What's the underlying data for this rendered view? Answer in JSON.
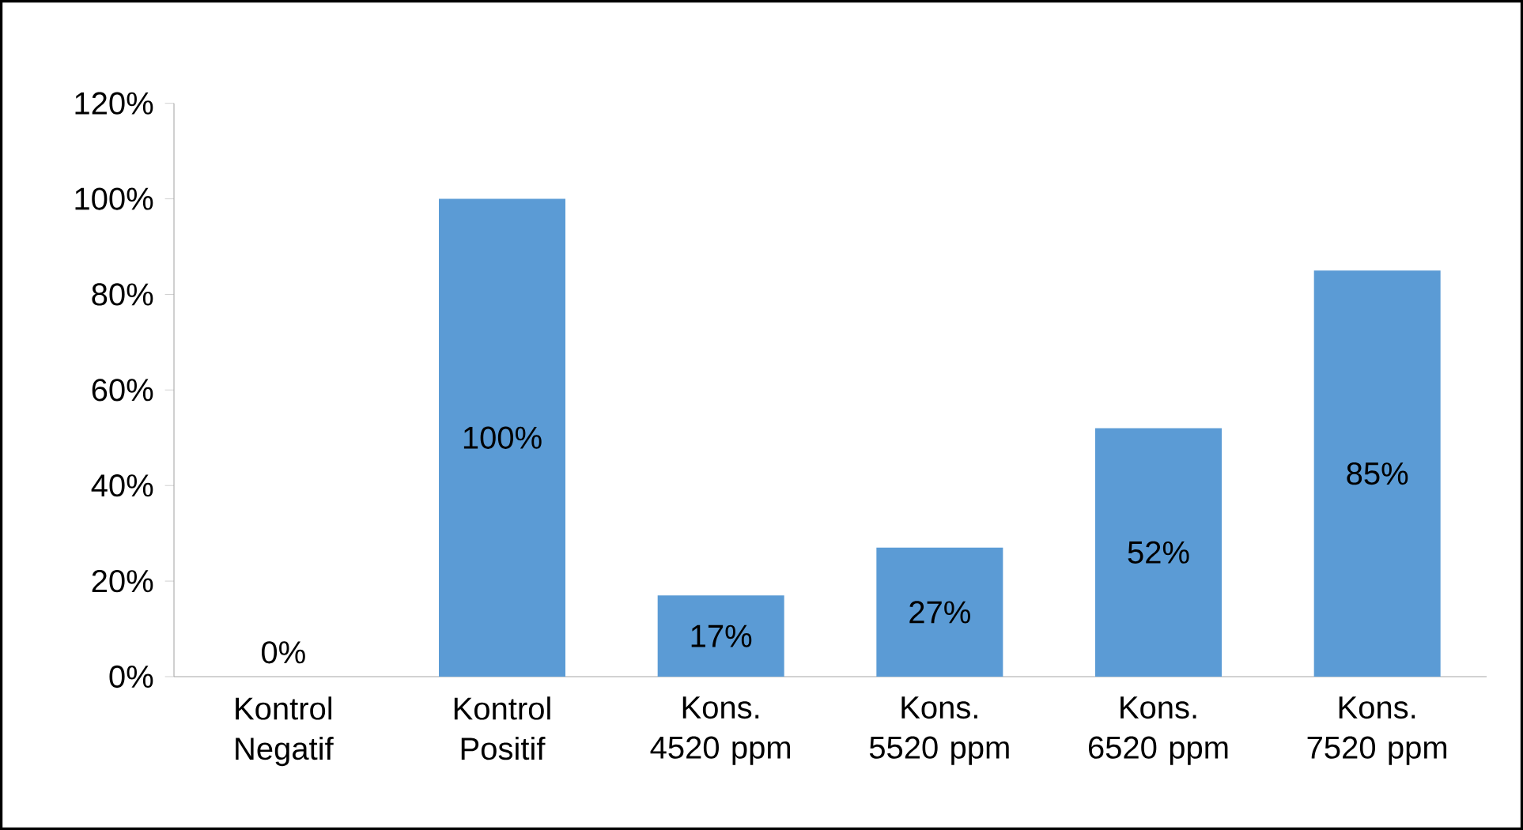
{
  "chart_data": {
    "type": "bar",
    "categories": [
      "Kontrol Negatif",
      "Kontrol Positif",
      "Kons. 4520 ppm",
      "Kons. 5520 ppm",
      "Kons. 6520 ppm",
      "Kons. 7520 ppm"
    ],
    "values": [
      0,
      100,
      17,
      27,
      52,
      85
    ],
    "value_labels": [
      "0%",
      "100%",
      "17%",
      "27%",
      "52%",
      "85%"
    ],
    "color": "#5b9bd5",
    "ylim": [
      0,
      120
    ],
    "yticks": [
      {
        "value": 0,
        "label": "0%"
      },
      {
        "value": 20,
        "label": "20%"
      },
      {
        "value": 40,
        "label": "40%"
      },
      {
        "value": 60,
        "label": "60%"
      },
      {
        "value": 80,
        "label": "80%"
      },
      {
        "value": 100,
        "label": "100%"
      },
      {
        "value": 120,
        "label": "120%"
      }
    ]
  }
}
